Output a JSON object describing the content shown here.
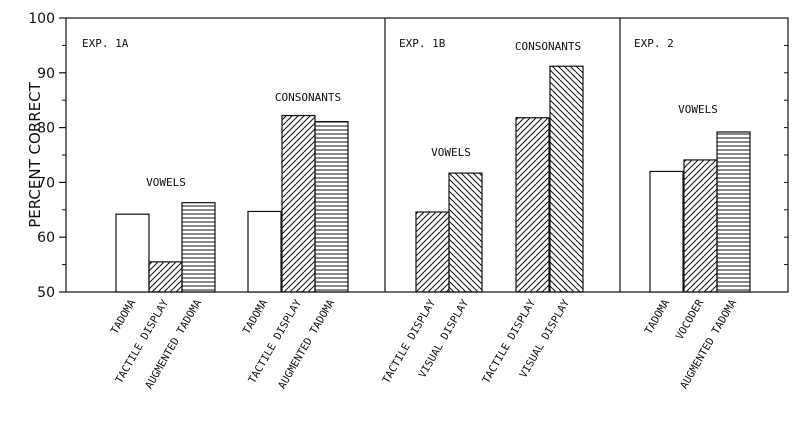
{
  "chart_data": {
    "type": "bar",
    "ylabel": "PERCENT CORRECT",
    "ylim": [
      50,
      100
    ],
    "yticks": [
      50,
      60,
      70,
      80,
      90,
      100
    ],
    "grid": false,
    "legend": "none",
    "panels": [
      {
        "label": "EXP. 1A",
        "groups": [
          {
            "label": "VOWELS",
            "bars": [
              {
                "category": "TADOMA",
                "value": 64.2,
                "pattern": "open"
              },
              {
                "category": "TACTILE DISPLAY",
                "value": 55.5,
                "pattern": "diagonal"
              },
              {
                "category": "AUGMENTED TADOMA",
                "value": 66.3,
                "pattern": "horizontal"
              }
            ]
          },
          {
            "label": "CONSONANTS",
            "bars": [
              {
                "category": "TADOMA",
                "value": 64.7,
                "pattern": "open"
              },
              {
                "category": "TACTILE DISPLAY",
                "value": 82.2,
                "pattern": "diagonal"
              },
              {
                "category": "AUGMENTED TADOMA",
                "value": 81.1,
                "pattern": "horizontal"
              }
            ]
          }
        ]
      },
      {
        "label": "EXP. 1B",
        "groups": [
          {
            "label": "VOWELS",
            "bars": [
              {
                "category": "TACTILE DISPLAY",
                "value": 64.6,
                "pattern": "diagonal"
              },
              {
                "category": "VISUAL DISPLAY",
                "value": 71.7,
                "pattern": "backdiagonal"
              }
            ]
          },
          {
            "label": "CONSONANTS",
            "bars": [
              {
                "category": "TACTILE DISPLAY",
                "value": 81.8,
                "pattern": "diagonal"
              },
              {
                "category": "VISUAL DISPLAY",
                "value": 91.2,
                "pattern": "backdiagonal"
              }
            ]
          }
        ]
      },
      {
        "label": "EXP. 2",
        "groups": [
          {
            "label": "VOWELS",
            "bars": [
              {
                "category": "TADOMA",
                "value": 72.0,
                "pattern": "open"
              },
              {
                "category": "VOCODER",
                "value": 74.1,
                "pattern": "diagonal"
              },
              {
                "category": "AUGMENTED TADOMA",
                "value": 79.2,
                "pattern": "horizontal"
              }
            ]
          }
        ]
      }
    ]
  }
}
